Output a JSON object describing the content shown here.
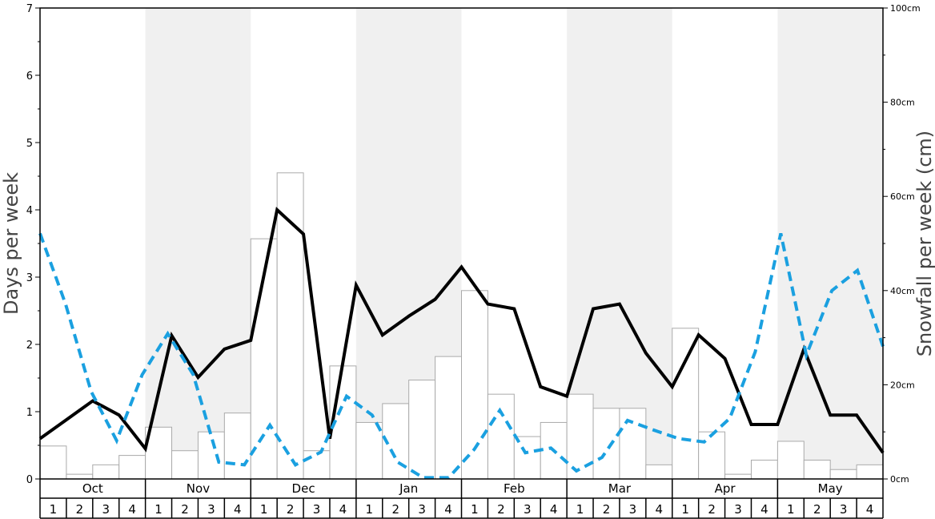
{
  "chart_data": {
    "type": "bar",
    "ylabel": "Days per week",
    "ylabel_right": "Snowfall per week (cm)",
    "left_ticks": [
      "0",
      "1",
      "2",
      "3",
      "4",
      "5",
      "6",
      "7"
    ],
    "left_ylim": [
      0,
      7
    ],
    "right_ticks": [
      "0cm",
      "20cm",
      "40cm",
      "60cm",
      "80cm",
      "100cm"
    ],
    "right_ylim": [
      0,
      100
    ],
    "months": [
      "Oct",
      "Nov",
      "Dec",
      "Jan",
      "Feb",
      "Mar",
      "Apr",
      "May"
    ],
    "weeks": [
      "1",
      "2",
      "3",
      "4"
    ],
    "shaded_months": [
      "Nov",
      "Jan",
      "Mar",
      "May"
    ],
    "grid": false,
    "series": [
      {
        "kind": "bar",
        "axis": "right",
        "color": "#ffffff",
        "edge": "#aaaaaa",
        "values": [
          7,
          1,
          3,
          5,
          11,
          6,
          10,
          14,
          51,
          65,
          6,
          24,
          12,
          16,
          21,
          26,
          40,
          18,
          9,
          12,
          18,
          15,
          15,
          3,
          32,
          10,
          1,
          4,
          8,
          4,
          2,
          3
        ]
      },
      {
        "kind": "line",
        "axis": "left",
        "color": "#000000",
        "style": "solid",
        "values": [
          0.6,
          0.88,
          1.16,
          0.95,
          0.45,
          2.13,
          1.51,
          1.93,
          2.06,
          4.0,
          3.64,
          0.6,
          2.88,
          2.14,
          2.42,
          2.67,
          3.15,
          2.6,
          2.53,
          1.37,
          1.23,
          2.53,
          2.6,
          1.87,
          1.37,
          2.14,
          1.79,
          0.81,
          0.81,
          1.93,
          0.95,
          0.95,
          0.39
        ]
      },
      {
        "kind": "line",
        "axis": "left",
        "color": "#1aa0e0",
        "style": "dashed",
        "values": [
          3.65,
          2.6,
          1.3,
          0.57,
          1.55,
          2.16,
          1.55,
          0.25,
          0.21,
          0.8,
          0.21,
          0.4,
          1.23,
          0.95,
          0.25,
          0.02,
          0.02,
          0.44,
          1.02,
          0.39,
          0.46,
          0.12,
          0.32,
          0.87,
          0.73,
          0.6,
          0.55,
          0.9,
          1.89,
          3.65,
          1.84,
          2.8,
          3.1,
          1.97
        ]
      }
    ]
  },
  "colors": {
    "shade": "#f0f0f0",
    "frame": "#000000",
    "title": "#444444"
  }
}
